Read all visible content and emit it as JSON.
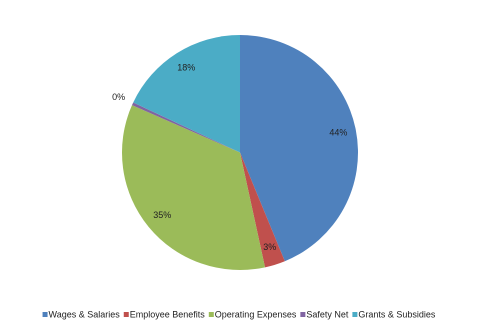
{
  "chart_data": {
    "type": "pie",
    "categories": [
      "Wages & Salaries",
      "Employee Benefits",
      "Operating Expenses",
      "Safety Net",
      "Grants & Subsidies"
    ],
    "values": [
      43.8,
      2.8,
      35.0,
      0.4,
      18.0
    ],
    "value_labels": [
      "44%",
      "3%",
      "35%",
      "0%",
      "18%"
    ],
    "colors": [
      "#4f81bd",
      "#c0504d",
      "#9bbb59",
      "#8064a2",
      "#4bacc6"
    ],
    "legend": "bottom"
  }
}
